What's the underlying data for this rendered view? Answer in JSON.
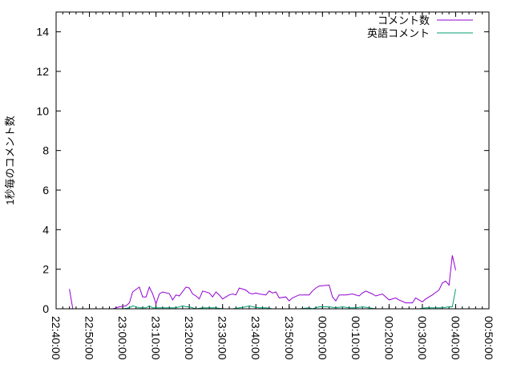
{
  "chart_data": {
    "type": "line",
    "title": "",
    "xlabel": "",
    "ylabel": "1秒毎のコメント数",
    "xlim": [
      "22:40:00",
      "00:50:00"
    ],
    "ylim": [
      0,
      15
    ],
    "x_ticks": [
      "22:40:00",
      "22:50:00",
      "23:00:00",
      "23:10:00",
      "23:20:00",
      "23:30:00",
      "23:40:00",
      "23:50:00",
      "00:00:00",
      "00:10:00",
      "00:20:00",
      "00:30:00",
      "00:40:00",
      "00:50:00"
    ],
    "y_ticks": [
      "0",
      "2",
      "4",
      "6",
      "8",
      "10",
      "12",
      "14"
    ],
    "grid": false,
    "legend_position": "top-right",
    "series": [
      {
        "name": "コメント数",
        "color": "#9400d3",
        "segments": [
          [
            [
              "22:44",
              1.0
            ],
            [
              "22:45",
              0.0
            ]
          ],
          [
            [
              "22:52",
              0.0
            ],
            [
              "22:53",
              0.0
            ]
          ],
          [
            [
              "22:57",
              0.0
            ],
            [
              "22:58",
              0.05
            ],
            [
              "22:59",
              0.1
            ],
            [
              "23:01",
              0.15
            ],
            [
              "23:02",
              0.3
            ],
            [
              "23:03",
              0.85
            ],
            [
              "23:05",
              1.1
            ],
            [
              "23:06",
              0.6
            ],
            [
              "23:07",
              0.6
            ],
            [
              "23:08",
              1.1
            ],
            [
              "23:09",
              0.75
            ],
            [
              "23:10",
              0.25
            ],
            [
              "23:11",
              0.75
            ],
            [
              "23:12",
              0.85
            ],
            [
              "23:14",
              0.77
            ],
            [
              "23:15",
              0.45
            ],
            [
              "23:16",
              0.7
            ],
            [
              "23:17",
              0.65
            ],
            [
              "23:19",
              1.1
            ],
            [
              "23:20",
              1.05
            ],
            [
              "23:21",
              0.75
            ],
            [
              "23:22",
              0.65
            ],
            [
              "23:23",
              0.5
            ],
            [
              "23:24",
              0.9
            ],
            [
              "23:26",
              0.8
            ],
            [
              "23:27",
              0.6
            ],
            [
              "23:28",
              0.85
            ],
            [
              "23:29",
              0.7
            ],
            [
              "23:30",
              0.5
            ],
            [
              "23:31",
              0.6
            ],
            [
              "23:32",
              0.7
            ],
            [
              "23:33",
              0.75
            ],
            [
              "23:34",
              0.7
            ],
            [
              "23:35",
              1.05
            ],
            [
              "23:37",
              0.95
            ],
            [
              "23:38",
              0.8
            ],
            [
              "23:39",
              0.75
            ],
            [
              "23:40",
              0.8
            ],
            [
              "23:41",
              0.75
            ],
            [
              "23:43",
              0.7
            ],
            [
              "23:44",
              0.9
            ],
            [
              "23:45",
              0.8
            ],
            [
              "23:46",
              0.85
            ],
            [
              "23:47",
              0.55
            ],
            [
              "23:49",
              0.6
            ],
            [
              "23:50",
              0.4
            ],
            [
              "23:51",
              0.55
            ],
            [
              "23:53",
              0.7
            ],
            [
              "23:54",
              0.7
            ],
            [
              "23:56",
              0.7
            ],
            [
              "23:57",
              0.9
            ],
            [
              "23:58",
              1.05
            ],
            [
              "23:59",
              1.15
            ],
            [
              "00:02",
              1.2
            ],
            [
              "00:03",
              0.6
            ],
            [
              "00:04",
              0.4
            ],
            [
              "00:05",
              0.7
            ],
            [
              "00:07",
              0.7
            ],
            [
              "00:09",
              0.75
            ],
            [
              "00:11",
              0.65
            ],
            [
              "00:12",
              0.8
            ],
            [
              "00:13",
              0.9
            ],
            [
              "00:15",
              0.75
            ],
            [
              "00:16",
              0.65
            ],
            [
              "00:18",
              0.75
            ],
            [
              "00:20",
              0.45
            ],
            [
              "00:22",
              0.55
            ],
            [
              "00:23",
              0.45
            ],
            [
              "00:25",
              0.3
            ],
            [
              "00:27",
              0.3
            ],
            [
              "00:28",
              0.55
            ],
            [
              "00:30",
              0.35
            ],
            [
              "00:31",
              0.5
            ],
            [
              "00:33",
              0.7
            ],
            [
              "00:35",
              0.95
            ],
            [
              "00:36",
              1.3
            ],
            [
              "00:37",
              1.4
            ],
            [
              "00:38",
              1.2
            ],
            [
              "00:39",
              2.7
            ],
            [
              "00:40",
              1.95
            ]
          ]
        ]
      },
      {
        "name": "英語コメント",
        "color": "#009e73",
        "segments": [
          [
            [
              "23:00",
              0.0
            ],
            [
              "23:02",
              0.05
            ],
            [
              "23:03",
              0.15
            ],
            [
              "23:05",
              0.05
            ],
            [
              "23:07",
              0.05
            ],
            [
              "23:08",
              0.15
            ],
            [
              "23:09",
              0.05
            ],
            [
              "23:12",
              0.05
            ],
            [
              "23:14",
              0.05
            ],
            [
              "23:16",
              0.05
            ],
            [
              "23:18",
              0.15
            ],
            [
              "23:19",
              0.1
            ],
            [
              "23:20",
              0.1
            ],
            [
              "23:22",
              0.0
            ],
            [
              "23:24",
              0.05
            ],
            [
              "23:26",
              0.05
            ],
            [
              "23:28",
              0.05
            ],
            [
              "23:30",
              0.0
            ],
            [
              "23:33",
              0.0
            ],
            [
              "23:35",
              0.05
            ],
            [
              "23:37",
              0.1
            ],
            [
              "23:38",
              0.15
            ],
            [
              "23:39",
              0.1
            ],
            [
              "23:41",
              0.05
            ],
            [
              "23:43",
              0.05
            ],
            [
              "23:45",
              0.0
            ],
            [
              "23:50",
              0.0
            ],
            [
              "23:53",
              0.0
            ],
            [
              "23:56",
              0.05
            ],
            [
              "23:57",
              0.0
            ],
            [
              "23:59",
              0.1
            ],
            [
              "00:02",
              0.1
            ],
            [
              "00:04",
              0.05
            ],
            [
              "00:06",
              0.1
            ],
            [
              "00:08",
              0.05
            ],
            [
              "00:10",
              0.05
            ],
            [
              "00:12",
              0.1
            ],
            [
              "00:14",
              0.05
            ],
            [
              "00:16",
              0.0
            ],
            [
              "00:20",
              0.0
            ]
          ],
          [
            [
              "00:21",
              0.0
            ],
            [
              "00:25",
              0.0
            ]
          ],
          [
            [
              "00:29",
              0.0
            ],
            [
              "00:31",
              0.05
            ],
            [
              "00:34",
              0.05
            ],
            [
              "00:36",
              0.05
            ],
            [
              "00:38",
              0.1
            ],
            [
              "00:39",
              0.1
            ],
            [
              "00:40",
              1.0
            ]
          ]
        ]
      }
    ]
  }
}
